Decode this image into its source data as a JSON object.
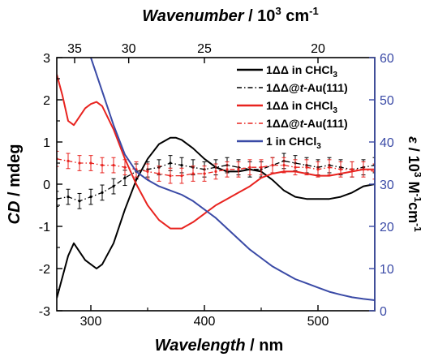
{
  "chart_data": {
    "type": "line",
    "top_axis_label": {
      "text": "Wavenumber",
      "unit": " / 10",
      "exp": "3",
      "unit_tail": " cm",
      "unit_exp": "-1"
    },
    "xlabel": {
      "text": "Wavelength",
      "unit": " / nm"
    },
    "ylabel": {
      "text": "CD",
      "unit": " / mdeg"
    },
    "y2label": {
      "text": "ε",
      "unit": " / 10",
      "exp": "3",
      "unit_mid": " M",
      "m_exp": "-1",
      "unit_mid2": "cm",
      "cm_exp": "-1"
    },
    "xlim": [
      270,
      550
    ],
    "ylim": [
      -3,
      3
    ],
    "y2lim": [
      0,
      60
    ],
    "x_ticks": [
      300,
      400,
      500
    ],
    "y_ticks": [
      -3,
      -2,
      -1,
      0,
      1,
      2,
      3
    ],
    "y2_ticks": [
      0,
      10,
      20,
      30,
      40,
      50,
      60
    ],
    "top_ticks": [
      35,
      30,
      25,
      20
    ],
    "legend_position": "top-right",
    "colors": {
      "black": "#000000",
      "red": "#e8231f",
      "blue": "#3a4aa6",
      "right_axis": "#3a4aa6"
    },
    "series": [
      {
        "name": "1ΔΔ in CHCl₃",
        "legend": {
          "prefix": "1ΔΔ in CHCl",
          "sub": "3",
          "italic": ""
        },
        "color": "#000000",
        "style": "solid",
        "axis": "left",
        "x": [
          270,
          275,
          280,
          285,
          290,
          295,
          300,
          305,
          310,
          320,
          330,
          340,
          350,
          360,
          370,
          375,
          380,
          390,
          400,
          410,
          420,
          430,
          440,
          450,
          460,
          470,
          480,
          490,
          500,
          510,
          520,
          530,
          540,
          550
        ],
        "y": [
          -2.7,
          -2.2,
          -1.7,
          -1.4,
          -1.6,
          -1.8,
          -1.9,
          -2.0,
          -1.9,
          -1.4,
          -0.6,
          0.1,
          0.6,
          0.95,
          1.1,
          1.1,
          1.05,
          0.85,
          0.6,
          0.4,
          0.3,
          0.3,
          0.35,
          0.3,
          0.1,
          -0.15,
          -0.3,
          -0.35,
          -0.35,
          -0.35,
          -0.3,
          -0.2,
          -0.05,
          0.0
        ]
      },
      {
        "name": "1ΔΔ@t-Au(111)",
        "legend": {
          "prefix": "1ΔΔ@",
          "sub": "",
          "italic": "t",
          "suffix": "-Au(111)"
        },
        "color": "#000000",
        "style": "dashdot",
        "axis": "left",
        "error_bars": true,
        "x": [
          270,
          280,
          290,
          300,
          310,
          320,
          330,
          340,
          350,
          360,
          370,
          380,
          390,
          400,
          410,
          420,
          430,
          440,
          450,
          460,
          470,
          480,
          490,
          500,
          510,
          520,
          530,
          540,
          550
        ],
        "y": [
          -0.35,
          -0.3,
          -0.4,
          -0.3,
          -0.2,
          -0.05,
          0.15,
          0.3,
          0.35,
          0.4,
          0.5,
          0.45,
          0.4,
          0.35,
          0.4,
          0.45,
          0.4,
          0.35,
          0.35,
          0.45,
          0.55,
          0.5,
          0.45,
          0.4,
          0.45,
          0.4,
          0.35,
          0.4,
          0.45
        ],
        "err": 0.18
      },
      {
        "name": "1ΔΔ in CHCl₃",
        "legend": {
          "prefix": "1ΔΔ in CHCl",
          "sub": "3",
          "italic": ""
        },
        "color": "#e8231f",
        "style": "solid",
        "axis": "left",
        "x": [
          270,
          275,
          280,
          285,
          290,
          295,
          300,
          305,
          310,
          320,
          330,
          340,
          350,
          360,
          370,
          380,
          390,
          400,
          410,
          420,
          430,
          440,
          450,
          460,
          470,
          480,
          490,
          500,
          510,
          520,
          530,
          540,
          550
        ],
        "y": [
          2.6,
          2.1,
          1.5,
          1.4,
          1.6,
          1.8,
          1.9,
          1.95,
          1.85,
          1.3,
          0.6,
          0.0,
          -0.5,
          -0.85,
          -1.05,
          -1.05,
          -0.9,
          -0.7,
          -0.5,
          -0.35,
          -0.2,
          -0.05,
          0.15,
          0.25,
          0.3,
          0.3,
          0.25,
          0.2,
          0.2,
          0.25,
          0.3,
          0.35,
          0.35
        ]
      },
      {
        "name": "1ΔΔ@t-Au(111)",
        "legend": {
          "prefix": "1ΔΔ@",
          "sub": "",
          "italic": "t",
          "suffix": "-Au(111)"
        },
        "color": "#e8231f",
        "style": "dashdot",
        "axis": "left",
        "error_bars": true,
        "x": [
          270,
          280,
          290,
          300,
          310,
          320,
          330,
          340,
          350,
          360,
          370,
          380,
          390,
          400,
          410,
          420,
          430,
          440,
          450,
          460,
          470,
          480,
          490,
          500,
          510,
          520,
          530,
          540,
          550
        ],
        "y": [
          0.6,
          0.55,
          0.5,
          0.5,
          0.45,
          0.45,
          0.4,
          0.35,
          0.3,
          0.25,
          0.2,
          0.2,
          0.25,
          0.25,
          0.3,
          0.35,
          0.35,
          0.4,
          0.4,
          0.45,
          0.45,
          0.4,
          0.4,
          0.35,
          0.4,
          0.35,
          0.35,
          0.35,
          0.3
        ],
        "err": 0.18
      },
      {
        "name": "1 in CHCl₃",
        "legend": {
          "prefix": "1 in CHCl",
          "sub": "3",
          "italic": ""
        },
        "color": "#3a4aa6",
        "style": "solid",
        "axis": "right",
        "x": [
          300,
          310,
          320,
          330,
          340,
          350,
          360,
          370,
          380,
          390,
          400,
          410,
          420,
          430,
          440,
          450,
          460,
          470,
          480,
          490,
          500,
          510,
          520,
          530,
          540,
          550
        ],
        "y": [
          60,
          52,
          44,
          37,
          33,
          31,
          29.5,
          28.5,
          27.5,
          26,
          24,
          22,
          19.5,
          17,
          14.5,
          12.5,
          10.5,
          9,
          7.5,
          6.5,
          5.5,
          4.5,
          3.8,
          3.2,
          2.8,
          2.5
        ]
      }
    ]
  }
}
